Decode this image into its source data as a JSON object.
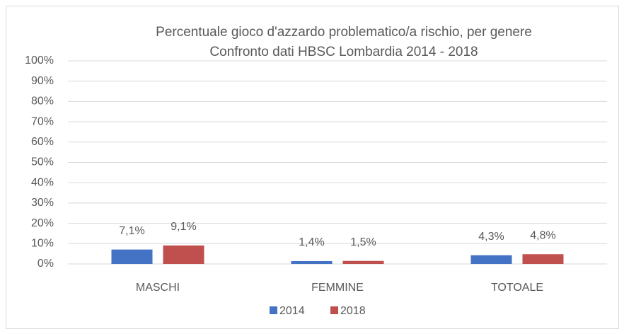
{
  "chart_data": {
    "type": "bar",
    "title": "Percentuale gioco d'azzardo problematico/a rischio, per genere",
    "subtitle": "Confronto dati HBSC Lombardia 2014 - 2018",
    "categories": [
      "MASCHI",
      "FEMMINE",
      "TOTOALE"
    ],
    "series": [
      {
        "name": "2014",
        "color": "#4472c4",
        "values": [
          7.1,
          1.4,
          4.3
        ],
        "value_labels": [
          "7,1%",
          "1,4%",
          "4,3%"
        ]
      },
      {
        "name": "2018",
        "color": "#c0504d",
        "values": [
          9.1,
          1.5,
          4.8
        ],
        "value_labels": [
          "9,1%",
          "1,5%",
          "4,8%"
        ]
      }
    ],
    "ylim": [
      0,
      100
    ],
    "yticks": [
      {
        "value": 0,
        "label": "0%"
      },
      {
        "value": 10,
        "label": "10%"
      },
      {
        "value": 20,
        "label": "20%"
      },
      {
        "value": 30,
        "label": "30%"
      },
      {
        "value": 40,
        "label": "40%"
      },
      {
        "value": 50,
        "label": "50%"
      },
      {
        "value": 60,
        "label": "60%"
      },
      {
        "value": 70,
        "label": "70%"
      },
      {
        "value": 80,
        "label": "80%"
      },
      {
        "value": 90,
        "label": "90%"
      },
      {
        "value": 100,
        "label": "100%"
      }
    ],
    "grid": true,
    "legend": "bottom"
  }
}
